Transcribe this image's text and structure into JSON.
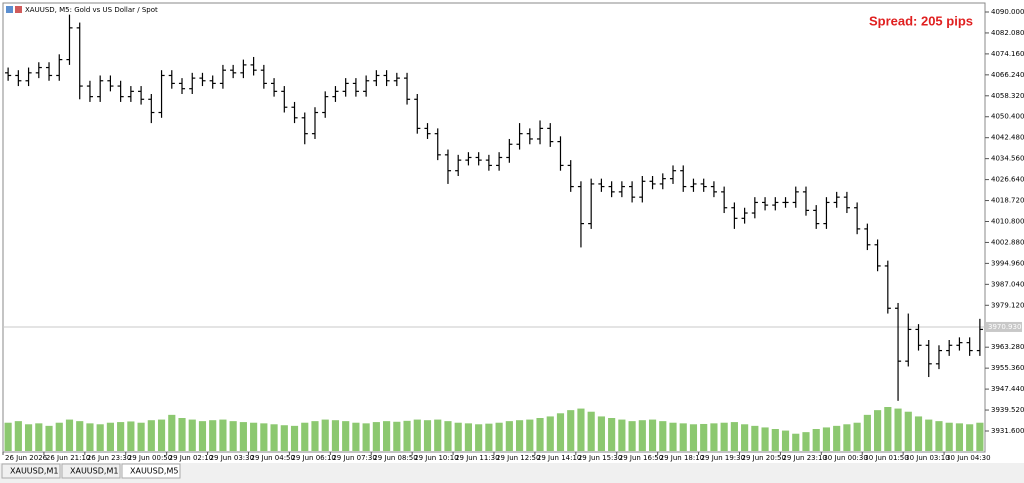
{
  "chart_data": {
    "type": "ohlc",
    "title": "XAUUSD, M5:  Gold vs US Dollar / Spot",
    "annotation": "Spread: 205 pips",
    "tabs": [
      "XAUUSD,M1",
      "XAUUSD,M1",
      "XAUUSD,M5"
    ],
    "color": "#000000",
    "volume_color": "#8cc870",
    "ylim": [
      3923.66,
      4093.4
    ],
    "yticks": [
      {
        "value": 4090,
        "label": "4090.000"
      },
      {
        "value": 4082.08,
        "label": "4082.080"
      },
      {
        "value": 4074.16,
        "label": "4074.160"
      },
      {
        "value": 4066.24,
        "label": "4066.240"
      },
      {
        "value": 4058.32,
        "label": "4058.320"
      },
      {
        "value": 4050.4,
        "label": "4050.400"
      },
      {
        "value": 4042.48,
        "label": "4042.480"
      },
      {
        "value": 4034.56,
        "label": "4034.560"
      },
      {
        "value": 4026.64,
        "label": "4026.640"
      },
      {
        "value": 4018.72,
        "label": "4018.720"
      },
      {
        "value": 4010.8,
        "label": "4010.800"
      },
      {
        "value": 4002.88,
        "label": "4002.880"
      },
      {
        "value": 3994.96,
        "label": "3994.960"
      },
      {
        "value": 3987.04,
        "label": "3987.040"
      },
      {
        "value": 3979.12,
        "label": "3979.120"
      },
      {
        "value": 3963.28,
        "label": "3963.280"
      },
      {
        "value": 3955.36,
        "label": "3955.360"
      },
      {
        "value": 3947.44,
        "label": "3947.440"
      },
      {
        "value": 3939.52,
        "label": "3939.520"
      },
      {
        "value": 3931.6,
        "label": "3931.600"
      }
    ],
    "current_price": {
      "value": 3970.93,
      "label": "3970.930"
    },
    "categories": [
      "26 Jun 2026",
      null,
      null,
      null,
      "26 Jun 21:10",
      null,
      null,
      null,
      "26 Jun 23:30",
      null,
      null,
      null,
      "29 Jun 00:50",
      null,
      null,
      null,
      "29 Jun 02:10",
      null,
      null,
      null,
      "29 Jun 03:30",
      null,
      null,
      null,
      "29 Jun 04:50",
      null,
      null,
      null,
      "29 Jun 06:10",
      null,
      null,
      null,
      "29 Jun 07:30",
      null,
      null,
      null,
      "29 Jun 08:50",
      null,
      null,
      null,
      "29 Jun 10:10",
      null,
      null,
      null,
      "29 Jun 11:30",
      null,
      null,
      null,
      "29 Jun 12:50",
      null,
      null,
      null,
      "29 Jun 14:10",
      null,
      null,
      null,
      "29 Jun 15:30",
      null,
      null,
      null,
      "29 Jun 16:50",
      null,
      null,
      null,
      "29 Jun 18:10",
      null,
      null,
      null,
      "29 Jun 19:30",
      null,
      null,
      null,
      "29 Jun 20:50",
      null,
      null,
      null,
      "29 Jun 23:10",
      null,
      null,
      null,
      "30 Jun 00:30",
      null,
      null,
      null,
      "30 Jun 01:50",
      null,
      null,
      null,
      "30 Jun 03:10",
      null,
      null,
      null,
      "30 Jun 04:30",
      null,
      null,
      null
    ],
    "open": [
      4067,
      4066,
      4064,
      4067,
      4069,
      4066,
      4072,
      4084,
      4062,
      4058,
      4064,
      4062,
      4058,
      4060,
      4057,
      4052,
      4066,
      4063,
      4061,
      4065,
      4064,
      4063,
      4068,
      4067,
      4070,
      4068,
      4063,
      4060,
      4054,
      4050,
      4044,
      4052,
      4058,
      4060,
      4063,
      4060,
      4064,
      4066,
      4064,
      4065,
      4057,
      4046,
      4044,
      4036,
      4030,
      4034,
      4035,
      4034,
      4032,
      4035,
      4040,
      4044,
      4042,
      4046,
      4041,
      4032,
      4024,
      4010,
      4025,
      4024,
      4022,
      4024,
      4020,
      4026,
      4025,
      4027,
      4030,
      4024,
      4025,
      4024,
      4022,
      4016,
      4012,
      4014,
      4018,
      4017,
      4018,
      4018,
      4022,
      4015,
      4010,
      4018,
      4020,
      4016,
      4008,
      4002,
      3994,
      3978,
      3958,
      3970,
      3964,
      3957,
      3962,
      3964,
      3965,
      3962
    ],
    "high": [
      4069,
      4068,
      4069,
      4071,
      4071,
      4074,
      4089,
      4086,
      4064,
      4066,
      4066,
      4064,
      4062,
      4062,
      4059,
      4068,
      4068,
      4065,
      4067,
      4067,
      4066,
      4070,
      4070,
      4072,
      4073,
      4070,
      4065,
      4062,
      4056,
      4052,
      4054,
      4060,
      4062,
      4065,
      4065,
      4066,
      4068,
      4068,
      4067,
      4067,
      4059,
      4048,
      4046,
      4038,
      4036,
      4037,
      4037,
      4036,
      4037,
      4042,
      4048,
      4046,
      4049,
      4048,
      4043,
      4034,
      4026,
      4027,
      4027,
      4026,
      4026,
      4026,
      4028,
      4028,
      4029,
      4032,
      4032,
      4027,
      4027,
      4026,
      4024,
      4018,
      4016,
      4020,
      4020,
      4020,
      4020,
      4024,
      4024,
      4017,
      4020,
      4022,
      4022,
      4018,
      4010,
      4004,
      3996,
      3980,
      3976,
      3972,
      3966,
      3964,
      3966,
      3967,
      3967,
      3974
    ],
    "low": [
      4064,
      4062,
      4062,
      4065,
      4064,
      4064,
      4070,
      4057,
      4056,
      4056,
      4060,
      4056,
      4056,
      4055,
      4048,
      4050,
      4061,
      4059,
      4059,
      4062,
      4061,
      4061,
      4065,
      4065,
      4066,
      4061,
      4058,
      4052,
      4048,
      4040,
      4042,
      4050,
      4056,
      4058,
      4058,
      4058,
      4062,
      4062,
      4062,
      4055,
      4044,
      4042,
      4034,
      4025,
      4028,
      4032,
      4032,
      4030,
      4030,
      4033,
      4038,
      4040,
      4040,
      4039,
      4030,
      4022,
      4001,
      4008,
      4022,
      4020,
      4020,
      4018,
      4018,
      4023,
      4023,
      4025,
      4022,
      4022,
      4022,
      4020,
      4014,
      4008,
      4010,
      4012,
      4015,
      4015,
      4016,
      4016,
      4013,
      4008,
      4008,
      4016,
      4014,
      4006,
      4000,
      3992,
      3976,
      3943,
      3956,
      3962,
      3952,
      3955,
      3960,
      3962,
      3960,
      3960
    ],
    "close": [
      4066,
      4064,
      4067,
      4069,
      4066,
      4072,
      4084,
      4062,
      4058,
      4064,
      4062,
      4058,
      4060,
      4057,
      4052,
      4066,
      4063,
      4061,
      4065,
      4064,
      4063,
      4068,
      4067,
      4070,
      4068,
      4063,
      4060,
      4054,
      4050,
      4044,
      4052,
      4058,
      4060,
      4063,
      4060,
      4064,
      4066,
      4064,
      4065,
      4057,
      4046,
      4044,
      4036,
      4030,
      4034,
      4035,
      4034,
      4032,
      4035,
      4040,
      4044,
      4042,
      4046,
      4041,
      4032,
      4024,
      4010,
      4025,
      4024,
      4022,
      4024,
      4020,
      4026,
      4025,
      4027,
      4030,
      4024,
      4025,
      4024,
      4022,
      4016,
      4012,
      4014,
      4018,
      4017,
      4018,
      4018,
      4022,
      4015,
      4010,
      4018,
      4020,
      4016,
      4008,
      4002,
      3994,
      3978,
      3958,
      3970,
      3964,
      3957,
      3962,
      3964,
      3965,
      3962,
      3970
    ],
    "volume": [
      900,
      950,
      850,
      880,
      800,
      900,
      1000,
      950,
      880,
      850,
      900,
      920,
      940,
      900,
      980,
      1000,
      1150,
      1050,
      1000,
      950,
      980,
      1000,
      950,
      920,
      900,
      880,
      850,
      820,
      800,
      900,
      950,
      1000,
      980,
      950,
      900,
      880,
      920,
      950,
      930,
      960,
      1000,
      980,
      1000,
      950,
      900,
      880,
      850,
      870,
      900,
      950,
      980,
      1000,
      1050,
      1100,
      1200,
      1300,
      1350,
      1250,
      1100,
      1050,
      1000,
      950,
      980,
      1000,
      950,
      900,
      880,
      850,
      860,
      880,
      900,
      920,
      850,
      800,
      750,
      700,
      650,
      550,
      600,
      700,
      750,
      800,
      850,
      900,
      1150,
      1300,
      1400,
      1350,
      1250,
      1100,
      1000,
      950,
      900,
      880,
      850,
      900
    ]
  }
}
